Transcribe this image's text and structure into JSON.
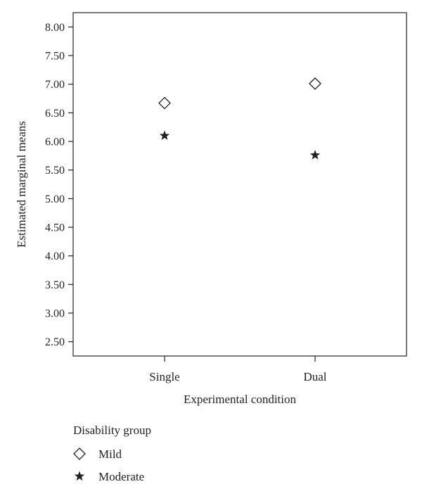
{
  "chart_data": {
    "type": "scatter",
    "title": "",
    "xlabel": "Experimental condition",
    "ylabel": "Estimated marginal means",
    "categories": [
      "Single",
      "Dual"
    ],
    "ylim": [
      2.25,
      8.25
    ],
    "yticks": [
      "2.50",
      "3.00",
      "3.50",
      "4.00",
      "4.50",
      "5.00",
      "5.50",
      "6.00",
      "6.50",
      "7.00",
      "7.50",
      "8.00"
    ],
    "grid": false,
    "legend": {
      "title": "Disability group",
      "placement": "bottom-left"
    },
    "series": [
      {
        "name": "Mild",
        "marker": "diamond",
        "values": [
          6.67,
          7.01
        ]
      },
      {
        "name": "Moderate",
        "marker": "star",
        "values": [
          6.1,
          5.76
        ]
      }
    ]
  },
  "colors": {
    "ink": "#222222",
    "background": "#ffffff"
  }
}
